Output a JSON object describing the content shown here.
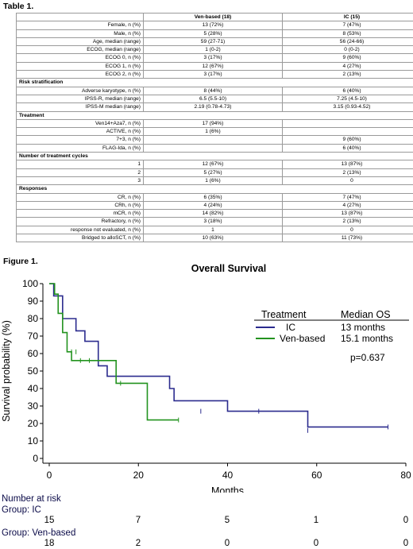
{
  "table": {
    "title": "Table 1.",
    "header": [
      "",
      "Ven-based (18)",
      "IC (15)"
    ],
    "rows": [
      {
        "label": "Female, n (%)",
        "ven": "13 (72%)",
        "ic": "7 (47%)"
      },
      {
        "label": "Male, n (%)",
        "ven": "5 (28%)",
        "ic": "8 (53%)"
      },
      {
        "label": "Age, median (range)",
        "ven": "59 (27-71)",
        "ic": "56 (24-66)"
      },
      {
        "label": "ECOG, median (range)",
        "ven": "1 (0-2)",
        "ic": "0 (0-2)"
      },
      {
        "label": "ECOG 0, n (%)",
        "ven": "3 (17%)",
        "ic": "9 (60%)"
      },
      {
        "label": "ECOG 1, n (%)",
        "ven": "12 (67%)",
        "ic": "4 (27%)"
      },
      {
        "label": "ECOG 2, n (%)",
        "ven": "3 (17%)",
        "ic": "2 (13%)"
      },
      {
        "section": "Risk stratification"
      },
      {
        "label": "Adverse karyotype, n (%)",
        "ven": "8 (44%)",
        "ic": "6 (40%)"
      },
      {
        "label": "IPSS-R, median (range)",
        "ven": "6.5 (5.5-10)",
        "ic": "7.25 (4.5-10)"
      },
      {
        "label": "IPSS-M median (range)",
        "ven": "2.19 (0.78-4.73)",
        "ic": "3.15 (0.93-4.52)"
      },
      {
        "section": "Treatment"
      },
      {
        "label": "Ven14+Aza7, n (%)",
        "ven": "17 (94%)",
        "ic": ""
      },
      {
        "label": "ACTIVE, n (%)",
        "ven": "1 (6%)",
        "ic": ""
      },
      {
        "label": "7+3, n (%)",
        "ven": "",
        "ic": "9 (60%)"
      },
      {
        "label": "FLAG-Ida, n (%)",
        "ven": "",
        "ic": "6 (40%)"
      },
      {
        "section": "Number of treatment cycles"
      },
      {
        "label": "1",
        "ven": "12 (67%)",
        "ic": "13 (87%)"
      },
      {
        "label": "2",
        "ven": "5 (27%)",
        "ic": "2 (13%)"
      },
      {
        "label": "3",
        "ven": "1 (6%)",
        "ic": "0"
      },
      {
        "section": "Responses"
      },
      {
        "label": "CR, n (%)",
        "ven": "6 (35%)",
        "ic": "7 (47%)"
      },
      {
        "label": "CRh, n (%)",
        "ven": "4 (24%)",
        "ic": "4 (27%)"
      },
      {
        "label": "mCR, n (%)",
        "ven": "14 (82%)",
        "ic": "13 (87%)"
      },
      {
        "label": "Refractory, n (%)",
        "ven": "3 (18%)",
        "ic": "2 (13%)"
      },
      {
        "label": "response not evaluated, n (%)",
        "ven": "1",
        "ic": "0"
      },
      {
        "label": "Bridged to alloSCT, n (%)",
        "ven": "10 (63%)",
        "ic": "11 (73%)"
      }
    ]
  },
  "figure": {
    "label": "Figure 1.",
    "colors": {
      "ic": "#2b2b8e",
      "ven": "#23931f"
    },
    "risk_table": {
      "title": "Number at risk",
      "groups": [
        {
          "label": "Group: IC",
          "counts": [
            "15",
            "7",
            "5",
            "1",
            "0"
          ]
        },
        {
          "label": "Group: Ven-based",
          "counts": [
            "18",
            "2",
            "0",
            "0",
            "0"
          ]
        }
      ]
    }
  },
  "chart_data": {
    "type": "line",
    "title": "Overall Survival",
    "xlabel": "Months",
    "ylabel": "Survival probability (%)",
    "xlim": [
      0,
      80
    ],
    "ylim": [
      0,
      100
    ],
    "xticks": [
      0,
      20,
      40,
      60,
      80
    ],
    "yticks": [
      0,
      10,
      20,
      30,
      40,
      50,
      60,
      70,
      80,
      90,
      100
    ],
    "step": true,
    "legend": {
      "title": "Treatment",
      "stat_title": "Median OS",
      "entries": [
        {
          "name": "IC",
          "stat": "13 months"
        },
        {
          "name": "Ven-based",
          "stat": "15.1 months"
        }
      ],
      "pvalue": "p=0.637",
      "placement": "top-right"
    },
    "series": [
      {
        "name": "IC",
        "points": [
          [
            0,
            100
          ],
          [
            1,
            93
          ],
          [
            3,
            80
          ],
          [
            6,
            73
          ],
          [
            8,
            67
          ],
          [
            11,
            53
          ],
          [
            13,
            47
          ],
          [
            27,
            40
          ],
          [
            28,
            33
          ],
          [
            40,
            27
          ],
          [
            58,
            18
          ],
          [
            76,
            18
          ]
        ],
        "censored": [
          [
            34,
            27
          ],
          [
            47,
            27
          ],
          [
            58,
            16
          ],
          [
            76,
            18
          ]
        ]
      },
      {
        "name": "Ven-based",
        "points": [
          [
            0,
            100
          ],
          [
            1.2,
            94
          ],
          [
            2,
            83
          ],
          [
            3,
            72
          ],
          [
            4,
            61
          ],
          [
            5,
            56
          ],
          [
            6,
            56
          ],
          [
            9,
            56
          ],
          [
            10,
            56
          ],
          [
            15,
            43
          ],
          [
            22,
            22
          ],
          [
            29,
            22
          ]
        ],
        "censored": [
          [
            5,
            61
          ],
          [
            6,
            61
          ],
          [
            7,
            56
          ],
          [
            9,
            56
          ],
          [
            16,
            43
          ],
          [
            29,
            22
          ]
        ]
      }
    ]
  }
}
